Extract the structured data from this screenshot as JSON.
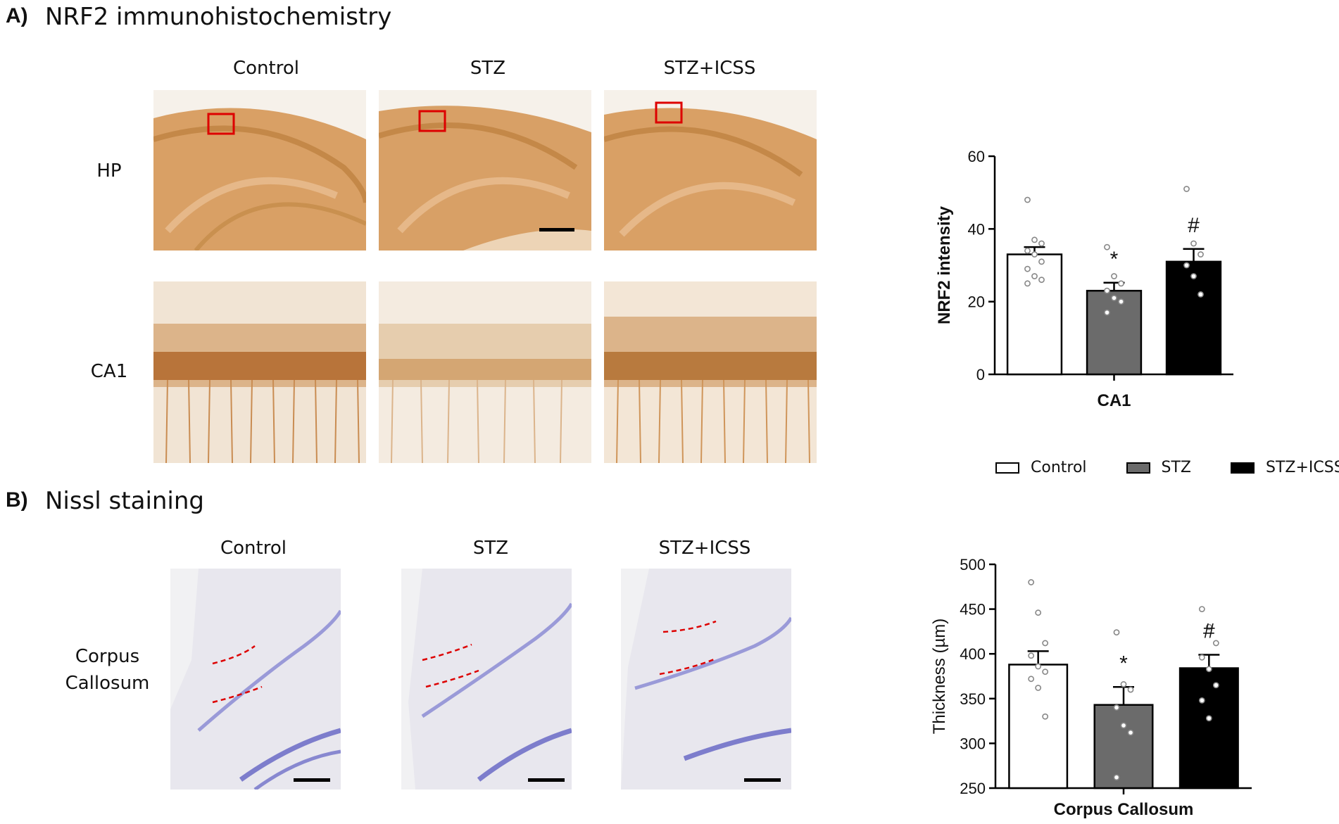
{
  "panel_a": {
    "letter": "A)",
    "title": "NRF2 immunohistochemistry",
    "columns": [
      "Control",
      "STZ",
      "STZ+ICSS"
    ],
    "rows": [
      "HP",
      "CA1"
    ]
  },
  "panel_b": {
    "letter": "B)",
    "title": "Nissl staining",
    "columns": [
      "Control",
      "STZ",
      "STZ+ICSS"
    ],
    "row_label_line1": "Corpus",
    "row_label_line2": "Callosum"
  },
  "legend": {
    "items": [
      {
        "label": "Control",
        "color": "#ffffff"
      },
      {
        "label": "STZ",
        "color": "#6b6b6b"
      },
      {
        "label": "STZ+ICSS",
        "color": "#000000"
      }
    ]
  },
  "chart_data": [
    {
      "type": "bar",
      "categories": [
        "Control",
        "STZ",
        "STZ+ICSS"
      ],
      "values": [
        33,
        23,
        31
      ],
      "errors": [
        2,
        2.2,
        3.5
      ],
      "colors": [
        "#ffffff",
        "#6b6b6b",
        "#000000"
      ],
      "annotations": [
        "",
        "*",
        "#"
      ],
      "points": [
        [
          48,
          37,
          36,
          34,
          33,
          31,
          29,
          27,
          26,
          25
        ],
        [
          35,
          27,
          25,
          23,
          21,
          20,
          17
        ],
        [
          51,
          36,
          33,
          30,
          27,
          22
        ]
      ],
      "xlabel": "CA1",
      "ylabel": "NRF2 intensity",
      "ylim": [
        0,
        60
      ],
      "yticks": [
        0,
        20,
        40,
        60
      ]
    },
    {
      "type": "bar",
      "categories": [
        "Control",
        "STZ",
        "STZ+ICSS"
      ],
      "values": [
        388,
        343,
        384
      ],
      "errors": [
        15,
        20,
        15
      ],
      "colors": [
        "#ffffff",
        "#6b6b6b",
        "#000000"
      ],
      "annotations": [
        "",
        "*",
        "#"
      ],
      "points": [
        [
          480,
          446,
          412,
          398,
          386,
          380,
          372,
          362,
          330
        ],
        [
          424,
          366,
          360,
          340,
          320,
          312,
          262
        ],
        [
          450,
          430,
          412,
          396,
          383,
          365,
          348,
          328
        ]
      ],
      "xlabel": "Corpus Callosum",
      "ylabel": "Thickness (µm)",
      "ylim": [
        250,
        500
      ],
      "yticks": [
        250,
        300,
        350,
        400,
        450,
        500
      ]
    }
  ]
}
